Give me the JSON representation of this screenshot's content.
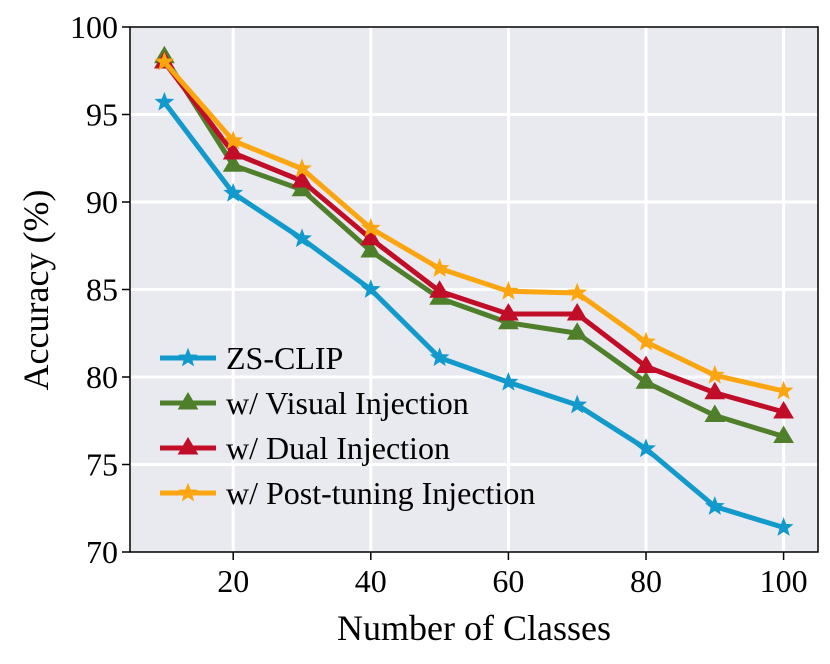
{
  "chart_data": {
    "type": "line",
    "title": "",
    "xlabel": "Number of Classes",
    "ylabel": "Accuracy (%)",
    "x": [
      10,
      20,
      30,
      40,
      50,
      60,
      70,
      80,
      90,
      100
    ],
    "xlim": [
      5,
      105
    ],
    "ylim": [
      70,
      100
    ],
    "xticks": [
      20,
      40,
      60,
      80,
      100
    ],
    "yticks": [
      70,
      75,
      80,
      85,
      90,
      95,
      100
    ],
    "grid": true,
    "legend_position": "lower-left",
    "series": [
      {
        "name": "ZS-CLIP",
        "color": "#119acb",
        "marker": "star",
        "values": [
          95.7,
          90.5,
          87.9,
          85.0,
          81.1,
          79.7,
          78.4,
          75.9,
          72.6,
          71.4
        ]
      },
      {
        "name": "w/ Visual Injection",
        "color": "#507f2c",
        "marker": "triangle",
        "values": [
          98.3,
          92.1,
          90.7,
          87.2,
          84.5,
          83.1,
          82.5,
          79.7,
          77.8,
          76.6
        ]
      },
      {
        "name": "w/ Dual Injection",
        "color": "#c10d27",
        "marker": "triangle",
        "values": [
          98.0,
          92.8,
          91.2,
          87.9,
          84.9,
          83.6,
          83.6,
          80.6,
          79.1,
          78.0
        ]
      },
      {
        "name": "w/ Post-tuning Injection",
        "color": "#fba611",
        "marker": "star",
        "values": [
          98.0,
          93.5,
          91.9,
          88.5,
          86.2,
          84.9,
          84.8,
          82.0,
          80.1,
          79.2
        ]
      }
    ]
  }
}
